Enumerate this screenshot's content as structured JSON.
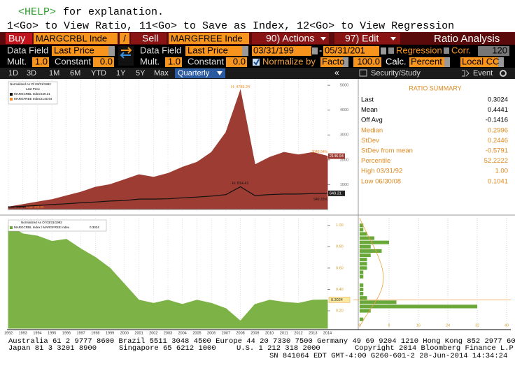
{
  "header": {
    "help_key": "<HELP>",
    "help_text": "for explanation.",
    "hint": "1<Go> to View Ratio, 11<Go> to Save as Index, 12<Go> to View Regression"
  },
  "toolbar": {
    "buy": "Buy",
    "security_1": "MARGCRBL Inde",
    "divider": "/",
    "sell": "Sell",
    "security_2": "MARGFREE Inde",
    "actions": "90) Actions",
    "edit": "97) Edit",
    "title": "Ratio Analysis"
  },
  "settings": {
    "data_field_label": "Data Field",
    "data_field_1": "Last Price",
    "data_field_2": "Last Price",
    "start_date": "03/31/199",
    "date_separator": "-",
    "end_date": "05/31/201",
    "regression": "Regression",
    "corr": "Corr.",
    "corr_window": "120",
    "mult_label": "Mult.",
    "mult_1": "1.0",
    "constant_label": "Constant",
    "constant_1": "0.0",
    "mult_2": "1.0",
    "constant_2": "0.0",
    "normalize_label": "Normalize by",
    "normalize_method": "Facto",
    "normalize_value": "100.0",
    "calc_label": "Calc.",
    "calc_method": "Percent",
    "currency": "Local CC"
  },
  "tabs": {
    "periods": [
      "1D",
      "3D",
      "1M",
      "6M",
      "YTD",
      "1Y",
      "5Y",
      "Max"
    ],
    "frequency": "Quarterly",
    "collapse": "«",
    "security_study": "Security/Study",
    "event": "Event"
  },
  "chart_data": [
    {
      "type": "area",
      "legend_title": "Normalized As Of 03/31/1992",
      "legend_subtitle": "Last Price",
      "x": [
        1992,
        1993,
        1994,
        1995,
        1996,
        1997,
        1998,
        1999,
        2000,
        2001,
        2002,
        2003,
        2004,
        2005,
        2006,
        2007,
        2008,
        2009,
        2010,
        2011,
        2012,
        2013,
        2014
      ],
      "xlim": [
        1992,
        2014
      ],
      "ylim": [
        0,
        5200
      ],
      "yticks": [
        1000,
        2000,
        3000,
        4000,
        5000
      ],
      "grid": true,
      "series": [
        {
          "name": "MARGCRBL Index",
          "color": "#111111",
          "fill": false,
          "values": [
            100,
            130,
            160,
            200,
            230,
            270,
            300,
            340,
            360,
            420,
            420,
            430,
            470,
            500,
            540,
            600,
            914.41,
            560,
            600,
            620,
            620,
            640,
            649.31
          ],
          "high_label": "H: 914.41",
          "low_label": "Low: 100.00",
          "change_label": "549.31%"
        },
        {
          "name": "MARGFREE Index",
          "color": "#f08a24",
          "fill": true,
          "fill_color": "#9c3c33",
          "values": [
            100,
            200,
            300,
            400,
            550,
            700,
            900,
            1000,
            1200,
            1400,
            1300,
            1450,
            1700,
            1900,
            2300,
            3100,
            4789.24,
            1800,
            2100,
            2300,
            2200,
            2300,
            2146.94
          ],
          "high_label": "H: 4789.24",
          "low_label": "Low: 100.00",
          "change_label": "2046.94%"
        }
      ]
    },
    {
      "type": "area",
      "legend_title": "Normalized As Of 03/31/1992",
      "x": [
        1992,
        1993,
        1994,
        1995,
        1996,
        1997,
        1998,
        1999,
        2000,
        2001,
        2002,
        2003,
        2004,
        2005,
        2006,
        2007,
        2008,
        2009,
        2010,
        2011,
        2012,
        2013,
        2014
      ],
      "xlim": [
        1992,
        2014
      ],
      "xticks": [
        1992,
        1993,
        1994,
        1995,
        1996,
        1997,
        1998,
        1999,
        2000,
        2001,
        2002,
        2003,
        2004,
        2005,
        2006,
        2007,
        2008,
        2009,
        2010,
        2011,
        2012,
        2013,
        2014
      ],
      "ylim": [
        0.05,
        1.07
      ],
      "yticks": [
        {
          "value": 0.2,
          "label": "0.20"
        },
        {
          "value": 0.4,
          "label": "0.40"
        },
        {
          "value": 0.6,
          "label": "0.60"
        },
        {
          "value": 0.8,
          "label": "0.80"
        },
        {
          "value": 1,
          "label": "1.00"
        }
      ],
      "grid": true,
      "series": [
        {
          "name": "MARGCRBL Index / MARGFREE Index",
          "color": "#6aa83a",
          "fill": true,
          "fill_color": "#7db346",
          "values": [
            1,
            0.92,
            0.9,
            0.85,
            0.87,
            0.78,
            0.7,
            0.6,
            0.45,
            0.3,
            0.27,
            0.3,
            0.26,
            0.3,
            0.27,
            0.22,
            0.1041,
            0.26,
            0.3,
            0.28,
            0.27,
            0.3,
            0.3024
          ]
        }
      ]
    },
    {
      "type": "histogram",
      "color": "#6aa83a",
      "bins": [
        0.1,
        0.14,
        0.18,
        0.22,
        0.26,
        0.3,
        0.34,
        0.38,
        0.42,
        0.46,
        0.5,
        0.54,
        0.58,
        0.62,
        0.66,
        0.7,
        0.74,
        0.78,
        0.82,
        0.86,
        0.9,
        0.94,
        0.98,
        1.02
      ],
      "counts": [
        1,
        0,
        3,
        32,
        10,
        2,
        1,
        1,
        1,
        0,
        1,
        1,
        2,
        2,
        2,
        3,
        6,
        3,
        8,
        4,
        2,
        1,
        1
      ],
      "xlim": [
        0,
        40
      ],
      "xticks": [
        0,
        8,
        16,
        24,
        32,
        40
      ]
    }
  ],
  "ratio_summary": {
    "title": "RATIO SUMMARY",
    "rows": [
      {
        "label": "Last",
        "value": "0.3024"
      },
      {
        "label": "Mean",
        "value": "0.4441"
      },
      {
        "label": "Off Avg",
        "value": "-0.1416"
      },
      {
        "label": "Median",
        "value": "0.2996"
      },
      {
        "label": "StDev",
        "value": "0.2446"
      },
      {
        "label": "StDev from mean",
        "value": "-0.5791"
      },
      {
        "label": "Percentile",
        "value": "52.2222"
      },
      {
        "label": "High 03/31/92",
        "value": "1.00"
      },
      {
        "label": "Low 06/30/08",
        "value": "0.1041"
      }
    ]
  },
  "footer": {
    "line_1": "Australia 61 2 9777 8600 Brazil 5511 3048 4500 Europe 44 20 7330 7500 Germany 49 69 9204 1210 Hong Kong 852 2977 6000",
    "phones": [
      "Japan 81 3 3201 8900",
      "Singapore 65 6212 1000",
      "U.S. 1 212 318 2000"
    ],
    "copyright": "Copyright 2014 Bloomberg Finance L.P.",
    "session": "SN 841064 EDT  GMT-4:00 G260-601-2 28-Jun-2014 14:34:24"
  }
}
